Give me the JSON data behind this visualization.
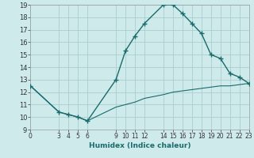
{
  "xlabel": "Humidex (Indice chaleur)",
  "background_color": "#ceeaea",
  "grid_color": "#aacece",
  "line_color": "#1a6b6b",
  "series1_x": [
    0,
    3,
    4,
    5,
    6,
    9,
    10,
    11,
    12,
    14,
    15,
    16,
    17,
    18,
    19,
    20,
    21,
    22,
    23
  ],
  "series1_y": [
    12.5,
    10.4,
    10.2,
    10.0,
    9.7,
    13.0,
    15.3,
    16.5,
    17.5,
    19.0,
    19.0,
    18.3,
    17.5,
    16.7,
    15.0,
    14.7,
    13.5,
    13.2,
    12.7
  ],
  "series2_x": [
    0,
    3,
    4,
    5,
    6,
    9,
    10,
    11,
    12,
    14,
    15,
    16,
    17,
    18,
    19,
    20,
    21,
    22,
    23
  ],
  "series2_y": [
    12.5,
    10.4,
    10.2,
    10.0,
    9.7,
    10.8,
    11.0,
    11.2,
    11.5,
    11.8,
    12.0,
    12.1,
    12.2,
    12.3,
    12.4,
    12.5,
    12.5,
    12.6,
    12.7
  ],
  "xlim": [
    0,
    23
  ],
  "ylim": [
    9,
    19
  ],
  "xticks": [
    0,
    3,
    4,
    5,
    6,
    9,
    10,
    11,
    12,
    14,
    15,
    16,
    17,
    18,
    19,
    20,
    21,
    22,
    23
  ],
  "yticks": [
    9,
    10,
    11,
    12,
    13,
    14,
    15,
    16,
    17,
    18,
    19
  ],
  "xlabel_color": "#1a6b6b",
  "tick_color": "#333333"
}
